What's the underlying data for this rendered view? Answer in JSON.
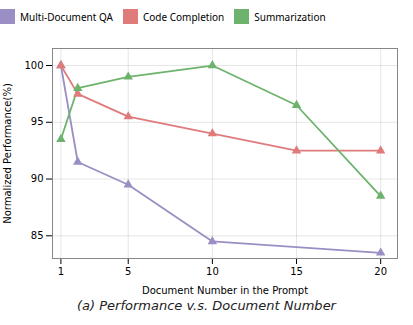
{
  "chart_data": {
    "type": "line",
    "caption": "(a) Performance v.s. Document Number",
    "xlabel": "Document Number in the Prompt",
    "ylabel": "Normalized Performance(%)",
    "series": [
      {
        "name": "Multi-Document QA",
        "color": "#9b8ec4",
        "x": [
          1,
          2,
          5,
          10,
          20
        ],
        "values": [
          100,
          91.5,
          89.5,
          84.5,
          83.5
        ]
      },
      {
        "name": "Code Completion",
        "color": "#e07b7b",
        "x": [
          1,
          2,
          5,
          10,
          15,
          20
        ],
        "values": [
          100,
          97.5,
          95.5,
          94.0,
          92.5,
          92.5
        ]
      },
      {
        "name": "Summarization",
        "color": "#6db36d",
        "x": [
          1,
          2,
          5,
          10,
          15,
          20
        ],
        "values": [
          93.5,
          98.0,
          99.0,
          100.0,
          96.5,
          88.5
        ]
      }
    ],
    "xlim": [
      0.5,
      21
    ],
    "xticks": [
      1,
      5,
      10,
      15,
      20
    ],
    "ylim": [
      83,
      101.5
    ],
    "yticks": [
      85,
      90,
      95,
      100
    ],
    "marker": "triangle",
    "grid": true,
    "legend": "top"
  }
}
